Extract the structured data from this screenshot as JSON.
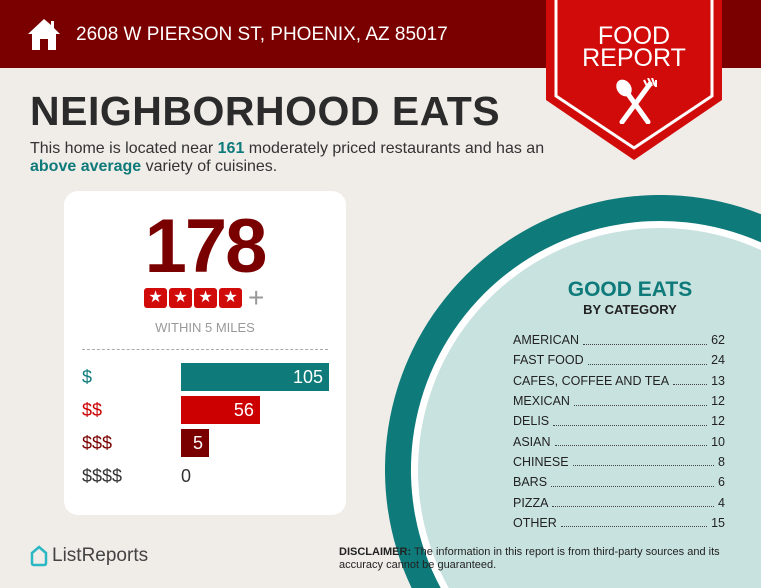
{
  "header": {
    "address": "2608 W PIERSON ST, PHOENIX, AZ 85017",
    "badge_line1": "FOOD",
    "badge_line2": "REPORT"
  },
  "title": "NEIGHBORHOOD EATS",
  "subtitle": {
    "pre": "This home is located near ",
    "count": "161",
    "mid": " moderately priced restaurants and has an ",
    "variety": "above average",
    "post": " variety of cuisines."
  },
  "summary": {
    "total": "178",
    "rating_stars": 4,
    "rating_suffix": "+",
    "radius": "WITHIN 5 MILES"
  },
  "price_levels": [
    {
      "label": "$",
      "value": "105",
      "color": "#0e7a7a"
    },
    {
      "label": "$$",
      "value": "56",
      "color": "#cc0000"
    },
    {
      "label": "$$$",
      "value": "5",
      "color": "#7a0000"
    },
    {
      "label": "$$$$",
      "value": "0",
      "color": "#333333"
    }
  ],
  "categories": {
    "title": "GOOD EATS",
    "subtitle": "BY CATEGORY",
    "items": [
      {
        "name": "AMERICAN",
        "count": "62"
      },
      {
        "name": "FAST FOOD",
        "count": "24"
      },
      {
        "name": "CAFES, COFFEE AND TEA",
        "count": "13"
      },
      {
        "name": "MEXICAN",
        "count": "12"
      },
      {
        "name": "DELIS",
        "count": "12"
      },
      {
        "name": "ASIAN",
        "count": "10"
      },
      {
        "name": "CHINESE",
        "count": "8"
      },
      {
        "name": "BARS",
        "count": "6"
      },
      {
        "name": "PIZZA",
        "count": "4"
      },
      {
        "name": "OTHER",
        "count": "15"
      }
    ]
  },
  "footer": {
    "logo": "ListReports",
    "disclaimer_label": "DISCLAIMER:",
    "disclaimer_text": " The information in this report is from third-party sources and its accuracy cannot be guaranteed."
  },
  "colors": {
    "header": "#7a0000",
    "badge": "#d10a0a",
    "teal": "#0e7a7a",
    "circle_light": "#c8e2e0"
  }
}
